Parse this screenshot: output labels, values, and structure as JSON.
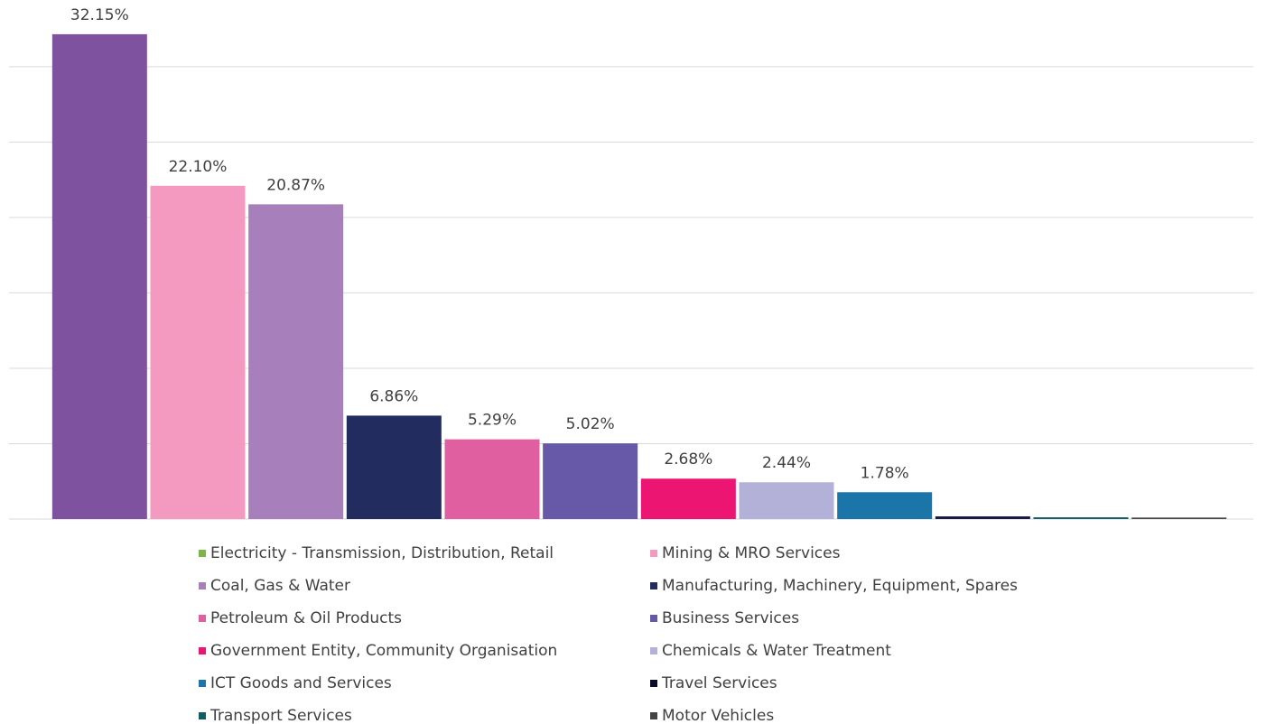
{
  "chart_data": {
    "type": "bar",
    "categories": [
      "Electricity - Transmission, Distribution, Retail",
      "Mining & MRO Services",
      "Coal, Gas & Water",
      "Manufacturing, Machinery, Equipment, Spares",
      "Petroleum & Oil Products",
      "Business Services",
      "Government Entity, Community Organisation",
      "Chemicals & Water Treatment",
      "ICT Goods and Services",
      "Travel Services",
      "Transport Services",
      "Motor Vehicles"
    ],
    "values": [
      32.15,
      22.1,
      20.87,
      6.86,
      5.29,
      5.02,
      2.68,
      2.44,
      1.78,
      0.18,
      0.12,
      0.1
    ],
    "value_labels": [
      "32.15%",
      "22.10%",
      "20.87%",
      "6.86%",
      "5.29%",
      "5.02%",
      "2.68%",
      "2.44%",
      "1.78%",
      null,
      null,
      null
    ],
    "colors": [
      "#7f52a0",
      "#f49ac1",
      "#a67fbb",
      "#232c5f",
      "#e05fa0",
      "#6759a7",
      "#ec1672",
      "#b3b1d8",
      "#1b75a9",
      "#1a1a40",
      "#17606a",
      "#444444"
    ],
    "legend_colors": [
      "#7ab648",
      "#f49ac1",
      "#a67fbb",
      "#232c5f",
      "#e05fa0",
      "#6759a7",
      "#ec1672",
      "#b3b1d8",
      "#1b75a9",
      "#0d0d2b",
      "#0f5e63",
      "#444444"
    ],
    "ylim": [
      0,
      34
    ],
    "yticks": [
      0,
      5,
      10,
      15,
      20,
      25,
      30
    ],
    "grid": true,
    "legend": "bottom"
  }
}
